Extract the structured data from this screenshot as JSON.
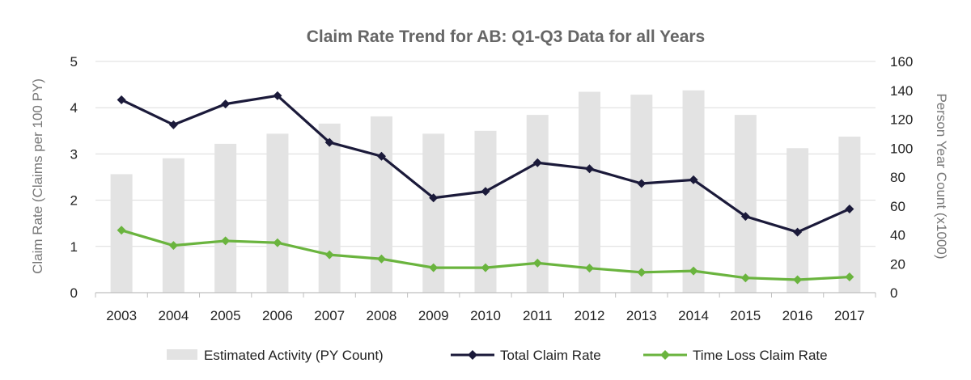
{
  "chart_data": {
    "type": "bar",
    "title": "Claim Rate Trend for AB: Q1-Q3 Data for all Years",
    "ylabel": "Claim Rate (Claims per 100 PY)",
    "y2label": "Person Year Count (x1000)",
    "ylim": [
      0,
      5
    ],
    "y2lim": [
      0,
      160
    ],
    "yticks": [
      "0",
      "1",
      "2",
      "3",
      "4",
      "5"
    ],
    "y2ticks": [
      "0",
      "20",
      "40",
      "60",
      "80",
      "100",
      "120",
      "140",
      "160"
    ],
    "categories": [
      "2003",
      "2004",
      "2005",
      "2006",
      "2007",
      "2008",
      "2009",
      "2010",
      "2011",
      "2012",
      "2013",
      "2014",
      "2015",
      "2016",
      "2017"
    ],
    "series": [
      {
        "name": "Estimated Activity (PY Count)",
        "type": "bar",
        "axis": "right",
        "color": "#e3e3e3",
        "values": [
          82,
          93,
          103,
          110,
          117,
          122,
          110,
          112,
          123,
          139,
          137,
          140,
          123,
          100,
          108
        ]
      },
      {
        "name": "Total Claim Rate",
        "type": "line",
        "axis": "left",
        "color": "#1b1a3a",
        "values": [
          4.17,
          3.63,
          4.08,
          4.26,
          3.25,
          2.95,
          2.05,
          2.19,
          2.81,
          2.68,
          2.36,
          2.44,
          1.65,
          1.31,
          1.81
        ]
      },
      {
        "name": "Time Loss Claim Rate",
        "type": "line",
        "axis": "left",
        "color": "#6ab43e",
        "values": [
          1.35,
          1.02,
          1.12,
          1.08,
          0.82,
          0.73,
          0.54,
          0.54,
          0.64,
          0.53,
          0.44,
          0.47,
          0.32,
          0.28,
          0.34
        ]
      }
    ],
    "legend": "bottom"
  }
}
